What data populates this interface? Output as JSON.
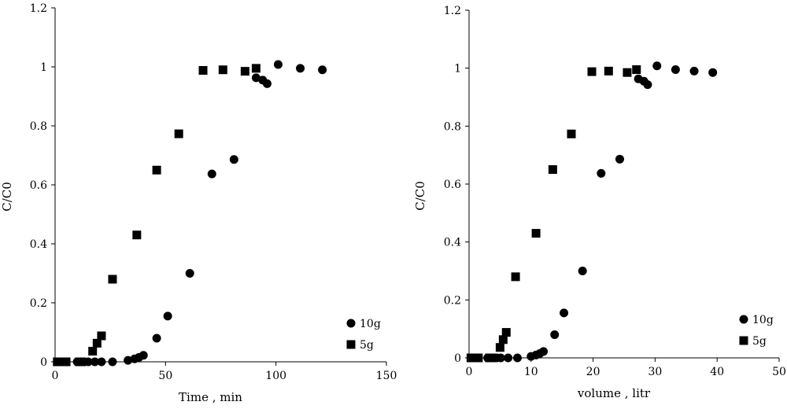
{
  "chart_data": [
    {
      "type": "scatter",
      "xlabel": "Time , min",
      "ylabel": "C/C0",
      "xlim": [
        0,
        150
      ],
      "ylim": [
        0,
        1.2
      ],
      "xticks": [
        "0",
        "50",
        "100",
        "150"
      ],
      "yticks": [
        "0",
        "0.2",
        "0.4",
        "0.6",
        "0.8",
        "1",
        "1.2"
      ],
      "legend": {
        "placement": "bottom-right"
      },
      "series": [
        {
          "name": "10g",
          "marker": "circle",
          "color": "#000000",
          "points": [
            [
              1,
              0
            ],
            [
              3,
              0
            ],
            [
              5,
              0
            ],
            [
              10,
              0
            ],
            [
              15,
              0
            ],
            [
              18,
              0
            ],
            [
              21,
              0
            ],
            [
              26,
              0
            ],
            [
              33,
              0.005
            ],
            [
              36,
              0.01
            ],
            [
              38,
              0.015
            ],
            [
              40,
              0.022
            ],
            [
              46,
              0.08
            ],
            [
              51,
              0.155
            ],
            [
              61,
              0.3
            ],
            [
              71,
              0.637
            ],
            [
              81,
              0.686
            ],
            [
              91,
              0.963
            ],
            [
              94,
              0.955
            ],
            [
              96,
              0.943
            ],
            [
              101,
              1.008
            ],
            [
              111,
              0.995
            ],
            [
              121,
              0.99
            ]
          ]
        },
        {
          "name": "5g",
          "marker": "square",
          "color": "#000000",
          "points": [
            [
              1,
              0
            ],
            [
              3,
              0
            ],
            [
              5,
              0
            ],
            [
              11,
              0
            ],
            [
              12,
              0
            ],
            [
              17,
              0.036
            ],
            [
              19,
              0.063
            ],
            [
              21,
              0.088
            ],
            [
              26,
              0.28
            ],
            [
              37,
              0.43
            ],
            [
              46,
              0.65
            ],
            [
              56,
              0.773
            ],
            [
              67,
              0.988
            ],
            [
              76,
              0.99
            ],
            [
              86,
              0.985
            ],
            [
              91,
              0.995
            ]
          ]
        }
      ]
    },
    {
      "type": "scatter",
      "xlabel": "volume , litr",
      "ylabel": "C/C0",
      "xlim": [
        0,
        50
      ],
      "ylim": [
        0,
        1.2
      ],
      "xticks": [
        "0",
        "10",
        "20",
        "30",
        "40",
        "50"
      ],
      "yticks": [
        "0",
        "0.2",
        "0.4",
        "0.6",
        "0.8",
        "1",
        "1.2"
      ],
      "legend": {
        "placement": "bottom-right"
      },
      "series": [
        {
          "name": "10g",
          "marker": "circle",
          "color": "#000000",
          "points": [
            [
              0.3,
              0
            ],
            [
              0.9,
              0
            ],
            [
              1.5,
              0
            ],
            [
              3,
              0
            ],
            [
              3.6,
              0
            ],
            [
              4.5,
              0
            ],
            [
              5.1,
              0
            ],
            [
              6.3,
              0
            ],
            [
              7.8,
              0
            ],
            [
              10,
              0.005
            ],
            [
              10.8,
              0.01
            ],
            [
              11.4,
              0.015
            ],
            [
              12,
              0.022
            ],
            [
              13.8,
              0.08
            ],
            [
              15.3,
              0.155
            ],
            [
              18.3,
              0.3
            ],
            [
              21.3,
              0.637
            ],
            [
              24.3,
              0.686
            ],
            [
              27.3,
              0.963
            ],
            [
              28.2,
              0.955
            ],
            [
              28.8,
              0.943
            ],
            [
              30.3,
              1.008
            ],
            [
              33.3,
              0.995
            ],
            [
              36.3,
              0.99
            ],
            [
              39.3,
              0.985
            ]
          ]
        },
        {
          "name": "5g",
          "marker": "square",
          "color": "#000000",
          "points": [
            [
              0.3,
              0
            ],
            [
              0.9,
              0
            ],
            [
              1.5,
              0
            ],
            [
              3.3,
              0
            ],
            [
              3.6,
              0
            ],
            [
              5,
              0.036
            ],
            [
              5.5,
              0.063
            ],
            [
              6,
              0.088
            ],
            [
              7.5,
              0.28
            ],
            [
              10.8,
              0.43
            ],
            [
              13.5,
              0.65
            ],
            [
              16.5,
              0.773
            ],
            [
              19.8,
              0.988
            ],
            [
              22.5,
              0.99
            ],
            [
              25.5,
              0.985
            ],
            [
              27,
              0.995
            ]
          ]
        }
      ]
    }
  ]
}
